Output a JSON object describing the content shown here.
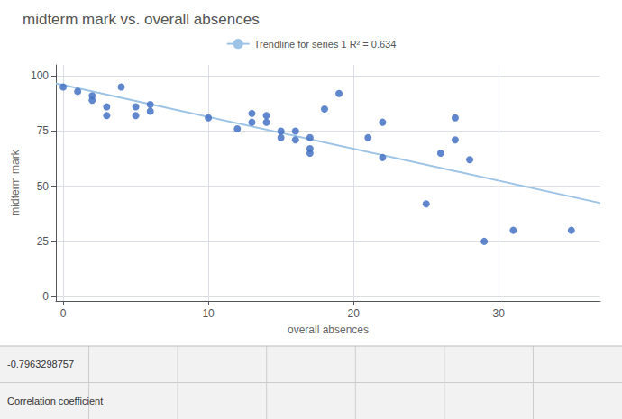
{
  "chart_data": {
    "type": "scatter",
    "title": "midterm mark vs. overall absences",
    "xlabel": "overall absences",
    "ylabel": "midterm mark",
    "series": [
      {
        "type": "scatter",
        "color": "#4472C4",
        "marker": "circle",
        "x": [
          0,
          1,
          2,
          2,
          3,
          3,
          4,
          5,
          5,
          6,
          6,
          10,
          12,
          13,
          13,
          14,
          14,
          15,
          15,
          16,
          16,
          17,
          17,
          17,
          18,
          19,
          21,
          22,
          22,
          25,
          26,
          27,
          27,
          28,
          29,
          31,
          35
        ],
        "values": [
          95,
          93,
          91,
          89,
          86,
          82,
          95,
          86,
          82,
          87,
          84,
          81,
          76,
          83,
          79,
          82,
          79,
          75,
          72,
          75,
          71,
          72,
          67,
          65,
          85,
          92,
          72,
          79,
          63,
          42,
          65,
          81,
          71,
          62,
          25,
          30,
          30
        ]
      },
      {
        "type": "line",
        "name": "Trendline for series 1 R² = 0.634",
        "color": "#9DC3E6",
        "line_style": "solid",
        "x": [
          -0.5,
          37
        ],
        "values": [
          96.6268,
          42.3714
        ]
      }
    ],
    "annotations": [
      "-0.7963298757",
      "Correlation coefficient"
    ],
    "xlim": [
      -0.5,
      37
    ],
    "ylim": [
      -2,
      105
    ],
    "xticks": [
      0,
      10,
      20,
      30
    ],
    "yticks": [
      0,
      25,
      50,
      75,
      100
    ],
    "grid": true,
    "legend": "top"
  }
}
